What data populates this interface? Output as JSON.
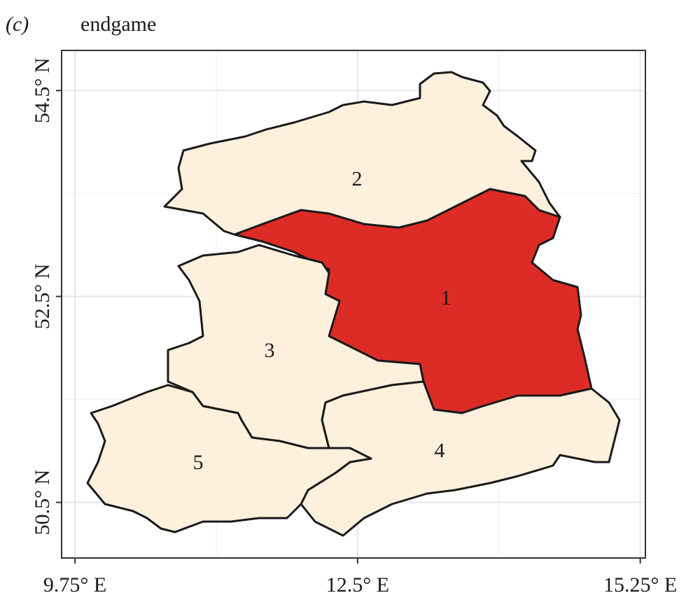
{
  "panel_label": "(c)",
  "title": "endgame",
  "xlim": [
    9.62,
    15.3
  ],
  "ylim": [
    49.96,
    54.89
  ],
  "xticks": [
    {
      "value": 9.75,
      "label": "9.75° E"
    },
    {
      "value": 12.5,
      "label": "12.5° E"
    },
    {
      "value": 15.25,
      "label": "15.25° E"
    }
  ],
  "yticks": [
    {
      "value": 50.5,
      "label": "50.5° N"
    },
    {
      "value": 52.5,
      "label": "52.5° N"
    },
    {
      "value": 54.5,
      "label": "54.5° N"
    }
  ],
  "x_minor": [
    11.125,
    13.875
  ],
  "y_minor": [
    51.5,
    53.5
  ],
  "grid": true,
  "regions": [
    {
      "label": "1",
      "color": "#dd2c26"
    },
    {
      "label": "2",
      "color": "#fdf0dc"
    },
    {
      "label": "3",
      "color": "#fdf0dc"
    },
    {
      "label": "4",
      "color": "#fdf0dc"
    },
    {
      "label": "5",
      "color": "#fdf0dc"
    }
  ]
}
